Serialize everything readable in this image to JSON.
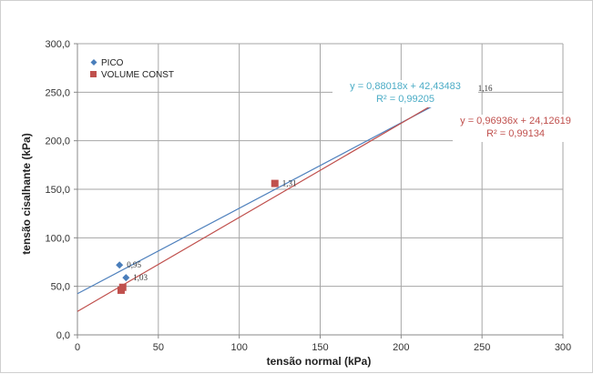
{
  "chart_data": {
    "type": "scatter",
    "xlabel": "tensão normal (kPa)",
    "ylabel": "tensão cisalhante (kPa)",
    "xlim": [
      0,
      300
    ],
    "ylim": [
      0,
      300
    ],
    "x_ticks": [
      "0",
      "50",
      "100",
      "150",
      "200",
      "250",
      "300"
    ],
    "y_ticks": [
      "0,0",
      "50,0",
      "100,0",
      "150,0",
      "200,0",
      "250,0",
      "300,0"
    ],
    "grid": true,
    "legend_position": "top-left",
    "series": [
      {
        "name": "PICO",
        "marker": "diamond",
        "color": "#4A7EBB",
        "line_color": "#4F81BD",
        "points": [
          {
            "x": 26,
            "y": 72,
            "label": "0,95"
          },
          {
            "x": 30,
            "y": 59,
            "label": "1,03"
          },
          {
            "x": 243,
            "y": 254,
            "label": "1,16"
          }
        ],
        "trendline": {
          "slope": 0.88018,
          "intercept": 42.43483,
          "x_range": [
            0,
            243
          ]
        },
        "equation": "y = 0,88018x + 42,43483",
        "r2": "R² = 0,99205",
        "equation_color": "#4BACC6"
      },
      {
        "name": "VOLUME CONST",
        "marker": "square",
        "color": "#C0504D",
        "line_color": "#C0504D",
        "points": [
          {
            "x": 27,
            "y": 46
          },
          {
            "x": 28,
            "y": 49
          },
          {
            "x": 122,
            "y": 156,
            "label": "1,31"
          },
          {
            "x": 244,
            "y": 254
          }
        ],
        "trendline": {
          "slope": 0.96936,
          "intercept": 24.12619,
          "x_range": [
            0,
            244
          ]
        },
        "equation": "y = 0,96936x + 24,12619",
        "r2": "R² = 0,99134",
        "equation_color": "#C0504D"
      }
    ]
  }
}
